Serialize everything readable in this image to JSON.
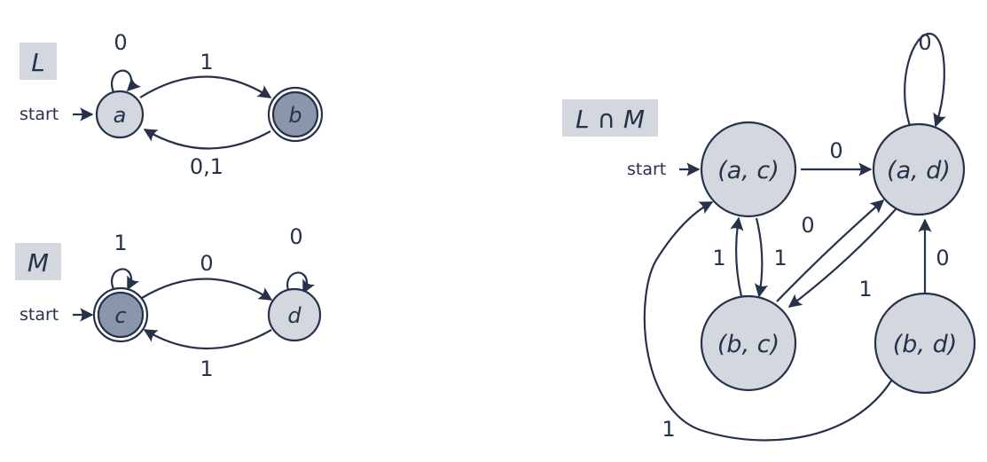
{
  "colors": {
    "stroke": "#25324a",
    "node_fill": "#d3d7de",
    "accept_fill": "#8b96ad",
    "box_fill": "#d3d7de"
  },
  "automaton_L": {
    "name": "L",
    "start_label": "start",
    "states": {
      "a": "a",
      "b": "b"
    },
    "edges": {
      "a_loop": "0",
      "a_to_b": "1",
      "b_to_a": "0,1"
    }
  },
  "automaton_M": {
    "name": "M",
    "start_label": "start",
    "states": {
      "c": "c",
      "d": "d"
    },
    "edges": {
      "c_loop": "1",
      "d_loop": "0",
      "c_to_d": "0",
      "d_to_c": "1"
    }
  },
  "automaton_LM": {
    "name": "L ∩ M",
    "start_label": "start",
    "states": {
      "ac": "(a, c)",
      "ad": "(a, d)",
      "bc": "(b, c)",
      "bd": "(b, d)"
    },
    "edges": {
      "ad_loop": "0",
      "ac_to_ad": "0",
      "bc_to_ac": "1",
      "ac_to_bc": "1",
      "bc_to_ad": "0",
      "ad_to_bc": "1",
      "bd_to_ad": "0",
      "bd_to_ac": "1"
    }
  }
}
